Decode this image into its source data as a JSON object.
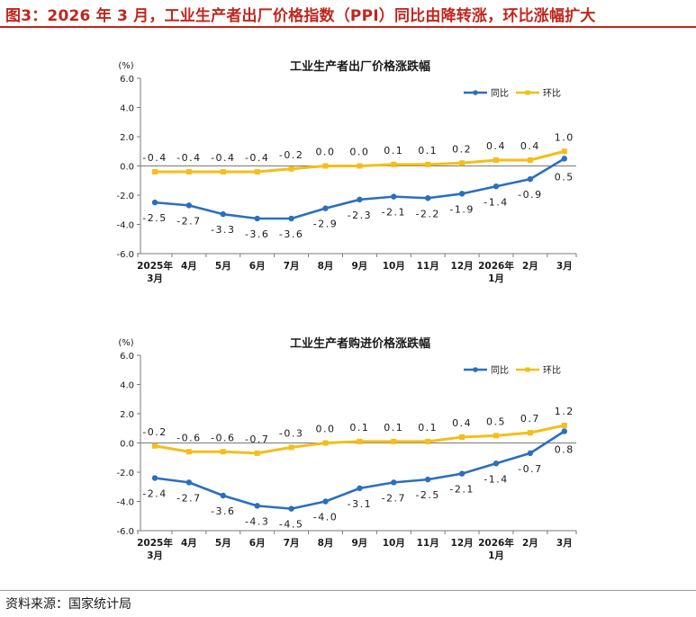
{
  "header": {
    "title": "图3：2026 年 3 月，工业生产者出厂价格指数（PPI）同比由降转涨，环比涨幅扩大"
  },
  "footer": {
    "source": "资料来源：国家统计局"
  },
  "colors": {
    "header_red": "#c0261e",
    "yoy_series": "#2a6fc0",
    "mom_series": "#f4be1a"
  },
  "chart_data": [
    {
      "type": "line",
      "title": "工业生产者出厂价格涨跌幅",
      "yunit": "(%)",
      "ylim": [
        -6.0,
        6.0
      ],
      "yticks": [
        "6.0",
        "4.0",
        "2.0",
        "0.0",
        "-2.0",
        "-4.0",
        "-6.0"
      ],
      "categories": [
        [
          "2025年",
          "3月"
        ],
        [
          "4月"
        ],
        [
          "5月"
        ],
        [
          "6月"
        ],
        [
          "7月"
        ],
        [
          "8月"
        ],
        [
          "9月"
        ],
        [
          "10月"
        ],
        [
          "11月"
        ],
        [
          "12月"
        ],
        [
          "2026年",
          "1月"
        ],
        [
          "2月"
        ],
        [
          "3月"
        ]
      ],
      "legend_position": "top-right",
      "series": [
        {
          "name": "同比",
          "color": "#2a6fc0",
          "values": [
            -2.5,
            -2.7,
            -3.3,
            -3.6,
            -3.6,
            -2.9,
            -2.3,
            -2.1,
            -2.2,
            -1.9,
            -1.4,
            -0.9,
            0.5
          ],
          "labels": [
            "-2.5",
            "-2.7",
            "-3.3",
            "-3.6",
            "-3.6",
            "-2.9",
            "-2.3",
            "-2.1",
            "-2.2",
            "-1.9",
            "-1.4",
            "-0.9",
            "0.5"
          ]
        },
        {
          "name": "环比",
          "color": "#f4be1a",
          "values": [
            -0.4,
            -0.4,
            -0.4,
            -0.4,
            -0.2,
            0.0,
            0.0,
            0.1,
            0.1,
            0.2,
            0.4,
            0.4,
            1.0
          ],
          "labels": [
            "-0.4",
            "-0.4",
            "-0.4",
            "-0.4",
            "-0.2",
            "0.0",
            "0.0",
            "0.1",
            "0.1",
            "0.2",
            "0.4",
            "0.4",
            "1.0"
          ]
        }
      ]
    },
    {
      "type": "line",
      "title": "工业生产者购进价格涨跌幅",
      "yunit": "(%)",
      "ylim": [
        -6.0,
        6.0
      ],
      "yticks": [
        "6.0",
        "4.0",
        "2.0",
        "0.0",
        "-2.0",
        "-4.0",
        "-6.0"
      ],
      "categories": [
        [
          "2025年",
          "3月"
        ],
        [
          "4月"
        ],
        [
          "5月"
        ],
        [
          "6月"
        ],
        [
          "7月"
        ],
        [
          "8月"
        ],
        [
          "9月"
        ],
        [
          "10月"
        ],
        [
          "11月"
        ],
        [
          "12月"
        ],
        [
          "2026年",
          "1月"
        ],
        [
          "2月"
        ],
        [
          "3月"
        ]
      ],
      "legend_position": "top-right",
      "series": [
        {
          "name": "同比",
          "color": "#2a6fc0",
          "values": [
            -2.4,
            -2.7,
            -3.6,
            -4.3,
            -4.5,
            -4.0,
            -3.1,
            -2.7,
            -2.5,
            -2.1,
            -1.4,
            -0.7,
            0.8
          ],
          "labels": [
            "-2.4",
            "-2.7",
            "-3.6",
            "-4.3",
            "-4.5",
            "-4.0",
            "-3.1",
            "-2.7",
            "-2.5",
            "-2.1",
            "-1.4",
            "-0.7",
            "0.8"
          ]
        },
        {
          "name": "环比",
          "color": "#f4be1a",
          "values": [
            -0.2,
            -0.6,
            -0.6,
            -0.7,
            -0.3,
            0.0,
            0.1,
            0.1,
            0.1,
            0.4,
            0.5,
            0.7,
            1.2
          ],
          "labels": [
            "-0.2",
            "-0.6",
            "-0.6",
            "-0.7",
            "-0.3",
            "0.0",
            "0.1",
            "0.1",
            "0.1",
            "0.4",
            "0.5",
            "0.7",
            "1.2"
          ]
        }
      ]
    }
  ]
}
